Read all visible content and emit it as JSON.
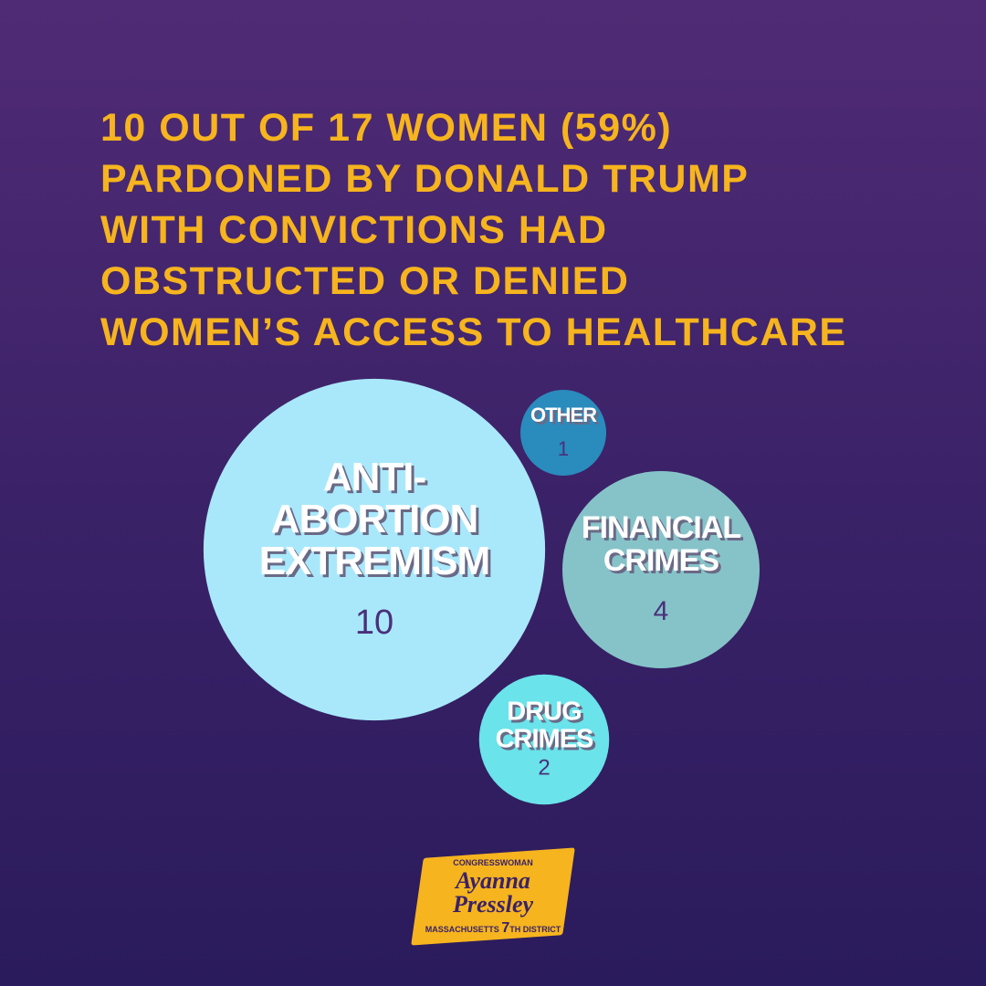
{
  "chart_data": {
    "type": "bubble",
    "title": [
      "10 OUT OF 17 WOMEN (59%)",
      "PARDONED BY DONALD TRUMP",
      "WITH CONVICTIONS HAD",
      "OBSTRUCTED OR DENIED",
      "WOMEN’S ACCESS TO HEALTHCARE"
    ],
    "categories": [
      "ANTI-ABORTION EXTREMISM",
      "OTHER",
      "FINANCIAL CRIMES",
      "DRUG CRIMES"
    ],
    "values": [
      10,
      1,
      4,
      2
    ],
    "colors": [
      "#a9e8fb",
      "#2a8bbd",
      "#86c3c9",
      "#6ae3ea"
    ]
  },
  "logo": {
    "top": "CONGRESSWOMAN",
    "first": "Ayanna",
    "last": "Pressley",
    "state": "MASSACHUSETTS",
    "number": "7",
    "district": "TH DISTRICT"
  }
}
